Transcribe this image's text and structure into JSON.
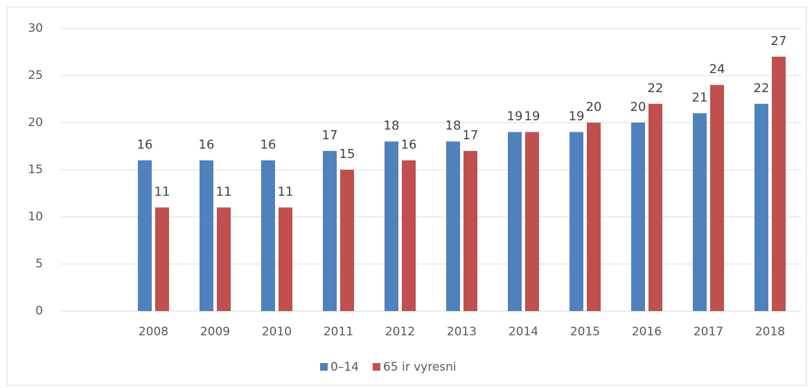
{
  "chart_data": {
    "type": "bar",
    "categories": [
      null,
      "2008",
      "2009",
      "2010",
      "2011",
      "2012",
      "2013",
      "2014",
      "2015",
      "2016",
      "2017",
      "2018"
    ],
    "series": [
      {
        "name": "0–14",
        "color": "#4f81bd",
        "values": [
          null,
          16,
          16,
          16,
          17,
          18,
          18,
          19,
          19,
          20,
          21,
          22
        ]
      },
      {
        "name": "65 ir vyresni",
        "color": "#c0504d",
        "values": [
          null,
          11,
          11,
          11,
          15,
          16,
          17,
          19,
          20,
          22,
          24,
          27
        ]
      }
    ],
    "ylim": [
      0,
      30
    ],
    "yticks": [
      0,
      5,
      10,
      15,
      20,
      25,
      30
    ],
    "grid": true,
    "legend": "bottom"
  }
}
